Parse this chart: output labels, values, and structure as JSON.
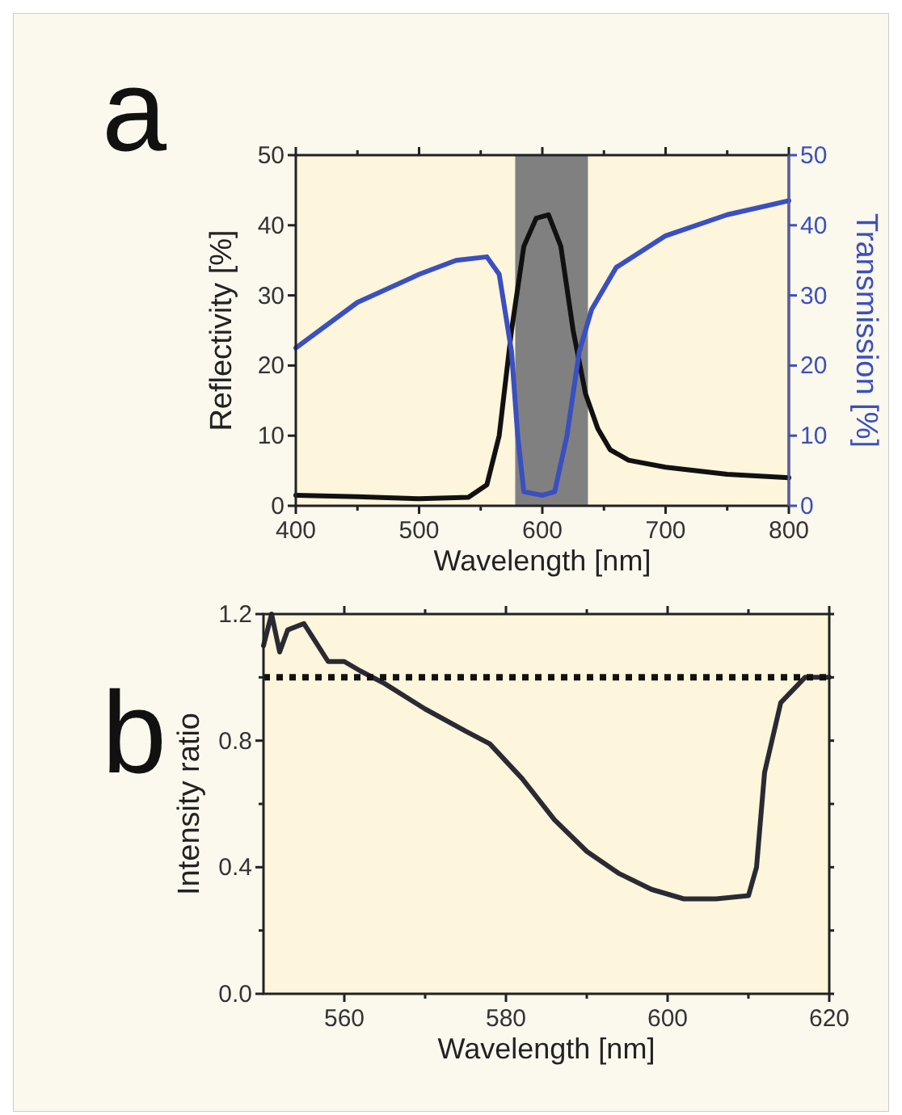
{
  "chart_data": [
    {
      "type": "line",
      "xlabel": "Wavelength [nm]",
      "ylabel": "Reflectivity [%]",
      "y2label": "Transmission [%]",
      "annotations": [
        "a"
      ],
      "xlim": [
        400,
        800
      ],
      "xticks": [
        400,
        {
          "value": 450,
          "label": null
        },
        500,
        {
          "value": 550,
          "label": null
        },
        600,
        {
          "value": 650,
          "label": null
        },
        700,
        {
          "value": 750,
          "label": null
        },
        800
      ],
      "ylim": [
        0,
        50
      ],
      "yticks": [
        0,
        10,
        20,
        30,
        40,
        50
      ],
      "y2lim": [
        0,
        50
      ],
      "y2ticks": [
        0,
        10,
        20,
        30,
        40,
        50
      ],
      "bands": [
        {
          "axis": "x",
          "from": 578,
          "to": 637,
          "color": "#808080"
        }
      ],
      "series": [
        {
          "color": "#111111",
          "x": [
            400,
            450,
            500,
            540,
            555,
            565,
            575,
            585,
            595,
            605,
            615,
            625,
            635,
            645,
            655,
            670,
            700,
            750,
            800
          ],
          "values": [
            1.5,
            1.3,
            1.0,
            1.2,
            3,
            10,
            25,
            37,
            41,
            41.5,
            37,
            25,
            16,
            11,
            8,
            6.5,
            5.5,
            4.5,
            4
          ]
        },
        {
          "color": "#3a4fc0",
          "axis": "y2",
          "x": [
            400,
            450,
            500,
            530,
            555,
            565,
            575,
            580,
            585,
            600,
            610,
            620,
            630,
            640,
            660,
            700,
            750,
            800
          ],
          "values": [
            22.5,
            29,
            33,
            35,
            35.5,
            33,
            22,
            10,
            2,
            1.5,
            2,
            10,
            22,
            28,
            34,
            38.5,
            41.5,
            43.5
          ]
        }
      ]
    },
    {
      "type": "line",
      "xlabel": "Wavelength [nm]",
      "ylabel": "Intensity ratio",
      "annotations": [
        "b"
      ],
      "xlim": [
        550,
        620
      ],
      "xticks": [
        560,
        {
          "value": 570,
          "label": null
        },
        580,
        {
          "value": 590,
          "label": null
        },
        600,
        {
          "value": 610,
          "label": null
        },
        620
      ],
      "ylim": [
        0,
        1.2
      ],
      "yticks": [
        {
          "value": 0,
          "label": "0.0"
        },
        {
          "value": 0.2,
          "label": null
        },
        0.4,
        {
          "value": 0.6,
          "label": null
        },
        0.8,
        {
          "value": 1.0,
          "label": null
        },
        1.2
      ],
      "ref_lines": [
        {
          "axis": "y",
          "value": 1.0,
          "color": "#111111",
          "line_style": "dotted"
        }
      ],
      "series": [
        {
          "color": "#2a2a33",
          "x": [
            550,
            551,
            552,
            553,
            555,
            556,
            558,
            560,
            562,
            565,
            570,
            575,
            578,
            582,
            586,
            590,
            594,
            598,
            602,
            606,
            610,
            611,
            612,
            614,
            617,
            620
          ],
          "values": [
            1.1,
            1.2,
            1.08,
            1.15,
            1.17,
            1.13,
            1.05,
            1.05,
            1.02,
            0.98,
            0.9,
            0.83,
            0.79,
            0.68,
            0.55,
            0.45,
            0.38,
            0.33,
            0.3,
            0.3,
            0.31,
            0.4,
            0.7,
            0.92,
            1.0,
            1.0
          ]
        }
      ]
    }
  ]
}
